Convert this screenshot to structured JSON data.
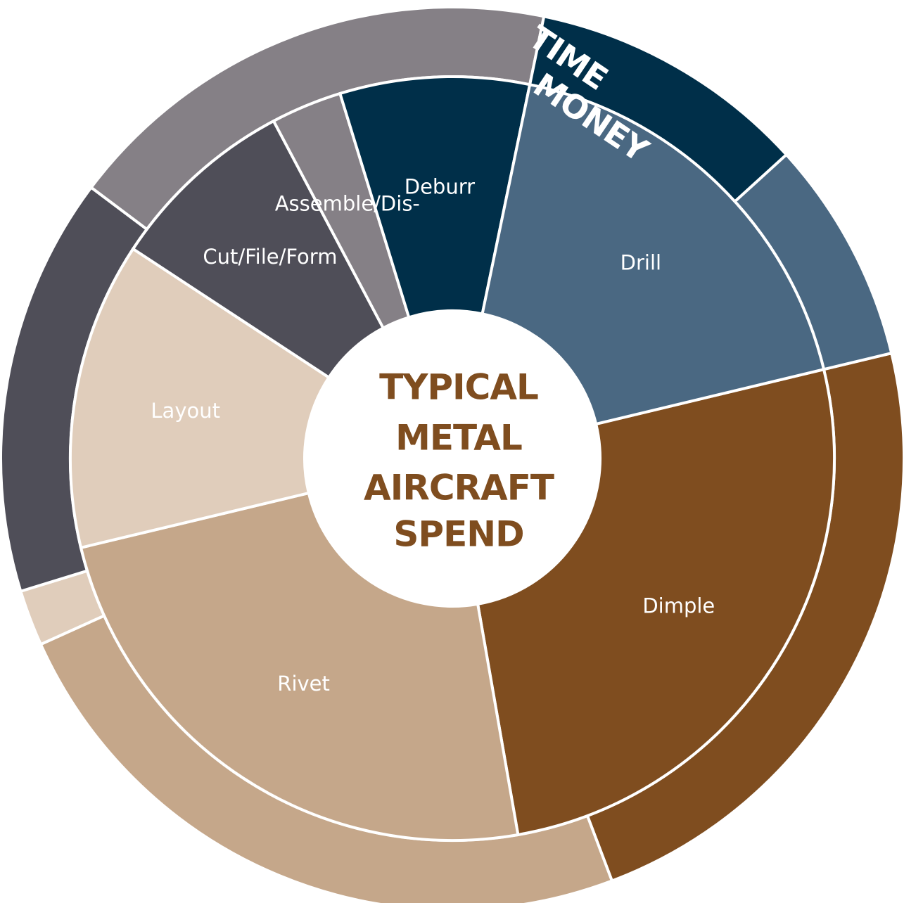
{
  "chart_data": {
    "type": "sunburst",
    "center_title": [
      "TYPICAL",
      "METAL",
      "AIRCRAFT",
      "SPEND"
    ],
    "ring_labels": {
      "outer": "TIME",
      "inner": "MONEY"
    },
    "inner_ring": [
      {
        "label": "Dimple",
        "value": 26.0,
        "color": "#7f4d1f",
        "label_color": "#ffffff"
      },
      {
        "label": "Rivet",
        "value": 24.0,
        "color": "#c5a78a",
        "label_color": "#ffffff"
      },
      {
        "label": "Layout",
        "value": 13.0,
        "color": "#e0cdbb",
        "label_color": "#ffffff"
      },
      {
        "label": "Cut/File/Form",
        "value": 8.0,
        "color": "#4f4e58",
        "label_color": "#ffffff"
      },
      {
        "label": "Assemble/Dis-",
        "value": 3.0,
        "color": "#858086",
        "label_color": "#ffffff"
      },
      {
        "label": "Deburr",
        "value": 8.0,
        "color": "#002f49",
        "label_color": "#ffffff"
      },
      {
        "label": "Drill",
        "value": 18.0,
        "color": "#4a6882",
        "label_color": "#ffffff"
      }
    ],
    "outer_ring": [
      {
        "label": "Dimple",
        "value": 23.0,
        "color": "#7f4d1f"
      },
      {
        "label": "Rivet",
        "value": 24.0,
        "color": "#c5a78a"
      },
      {
        "label": "Layout",
        "value": 2.0,
        "color": "#e0cdbb"
      },
      {
        "label": "Cut/File/Form",
        "value": 15.0,
        "color": "#4f4e58"
      },
      {
        "label": "Assemble/Dis-",
        "value": 18.0,
        "color": "#858086"
      },
      {
        "label": "Deburr",
        "value": 10.0,
        "color": "#002f49"
      },
      {
        "label": "Drill",
        "value": 8.0,
        "color": "#4a6882"
      }
    ],
    "title_color": "#7f4d1f",
    "background": "#ffffff"
  }
}
